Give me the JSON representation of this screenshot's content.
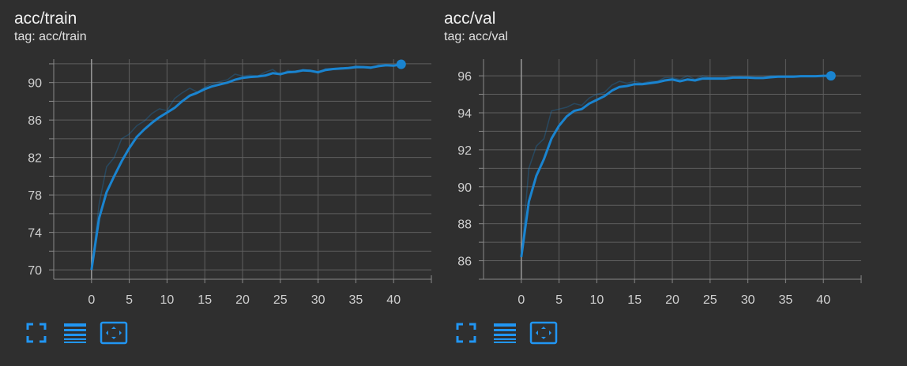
{
  "colors": {
    "background": "#2f2f2f",
    "line": "#1a84d0",
    "grid": "#5f5f5f",
    "text": "#cfcfcf",
    "icon": "#2196f3"
  },
  "toolbar": {
    "icons": [
      "fullscreen-icon",
      "toggle-y-log-icon",
      "fit-domain-icon"
    ]
  },
  "cards": [
    {
      "title": "acc/train",
      "tag": "tag: acc/train"
    },
    {
      "title": "acc/val",
      "tag": "tag: acc/val"
    }
  ],
  "chart_data": [
    {
      "type": "line",
      "title": "acc/train",
      "xlim": [
        -5,
        45
      ],
      "ylim": [
        69,
        92.5
      ],
      "x_ticks": [
        0,
        5,
        10,
        15,
        20,
        25,
        30,
        35,
        40
      ],
      "y_ticks": [
        70,
        74,
        78,
        82,
        86,
        90
      ],
      "grid": true,
      "x": [
        0,
        1,
        2,
        3,
        4,
        5,
        6,
        7,
        8,
        9,
        10,
        11,
        12,
        13,
        14,
        15,
        16,
        17,
        18,
        19,
        20,
        21,
        22,
        23,
        24,
        25,
        26,
        27,
        28,
        29,
        30,
        31,
        32,
        33,
        34,
        35,
        36,
        37,
        38,
        39,
        40,
        41
      ],
      "series": [
        {
          "values": [
            70.0,
            75.5,
            78.3,
            80.0,
            81.6,
            83.0,
            84.2,
            85.0,
            85.7,
            86.3,
            86.8,
            87.3,
            88.0,
            88.6,
            88.9,
            89.3,
            89.6,
            89.8,
            90.0,
            90.3,
            90.5,
            90.6,
            90.65,
            90.75,
            91.0,
            90.9,
            91.1,
            91.15,
            91.3,
            91.25,
            91.1,
            91.35,
            91.45,
            91.5,
            91.55,
            91.65,
            91.65,
            91.6,
            91.75,
            91.85,
            91.8,
            91.95
          ]
        },
        {
          "values": [
            70.0,
            77.0,
            81.0,
            82.0,
            84.0,
            84.5,
            85.4,
            85.9,
            86.7,
            87.2,
            87.0,
            88.3,
            88.9,
            89.4,
            89.0,
            89.5,
            89.9,
            90.1,
            90.3,
            90.9,
            90.7,
            90.8,
            90.7,
            91.1,
            91.4,
            90.8,
            91.3,
            91.1,
            91.4,
            91.3,
            91.0,
            91.5,
            91.5,
            91.6,
            91.5,
            91.8,
            91.7,
            91.5,
            91.9,
            91.9,
            91.8,
            92.0
          ]
        }
      ]
    },
    {
      "type": "line",
      "title": "acc/val",
      "xlim": [
        -5,
        45
      ],
      "ylim": [
        85.0,
        96.9
      ],
      "x_ticks": [
        0,
        5,
        10,
        15,
        20,
        25,
        30,
        35,
        40
      ],
      "y_ticks": [
        86,
        88,
        90,
        92,
        94,
        96
      ],
      "grid": true,
      "x": [
        0,
        1,
        2,
        3,
        4,
        5,
        6,
        7,
        8,
        9,
        10,
        11,
        12,
        13,
        14,
        15,
        16,
        17,
        18,
        19,
        20,
        21,
        22,
        23,
        24,
        25,
        26,
        27,
        28,
        29,
        30,
        31,
        32,
        33,
        34,
        35,
        36,
        37,
        38,
        39,
        40,
        41
      ],
      "series": [
        {
          "values": [
            86.2,
            89.2,
            90.6,
            91.5,
            92.6,
            93.3,
            93.8,
            94.1,
            94.2,
            94.5,
            94.7,
            94.9,
            95.2,
            95.4,
            95.45,
            95.55,
            95.55,
            95.6,
            95.65,
            95.75,
            95.8,
            95.7,
            95.8,
            95.75,
            95.85,
            95.85,
            95.85,
            95.85,
            95.9,
            95.9,
            95.9,
            95.88,
            95.88,
            95.92,
            95.95,
            95.95,
            95.95,
            95.98,
            95.98,
            95.98,
            96.0,
            96.0
          ]
        },
        {
          "values": [
            86.2,
            91.0,
            92.2,
            92.6,
            94.1,
            94.2,
            94.3,
            94.5,
            94.4,
            94.8,
            95.0,
            95.1,
            95.5,
            95.7,
            95.6,
            95.7,
            95.6,
            95.7,
            95.7,
            95.9,
            95.9,
            95.8,
            96.0,
            95.8,
            96.0,
            95.9,
            95.9,
            95.9,
            95.9,
            95.95,
            95.9,
            95.9,
            95.9,
            96.0,
            96.0,
            96.0,
            96.0,
            96.0,
            96.0,
            96.0,
            96.0,
            96.0
          ]
        }
      ]
    }
  ]
}
